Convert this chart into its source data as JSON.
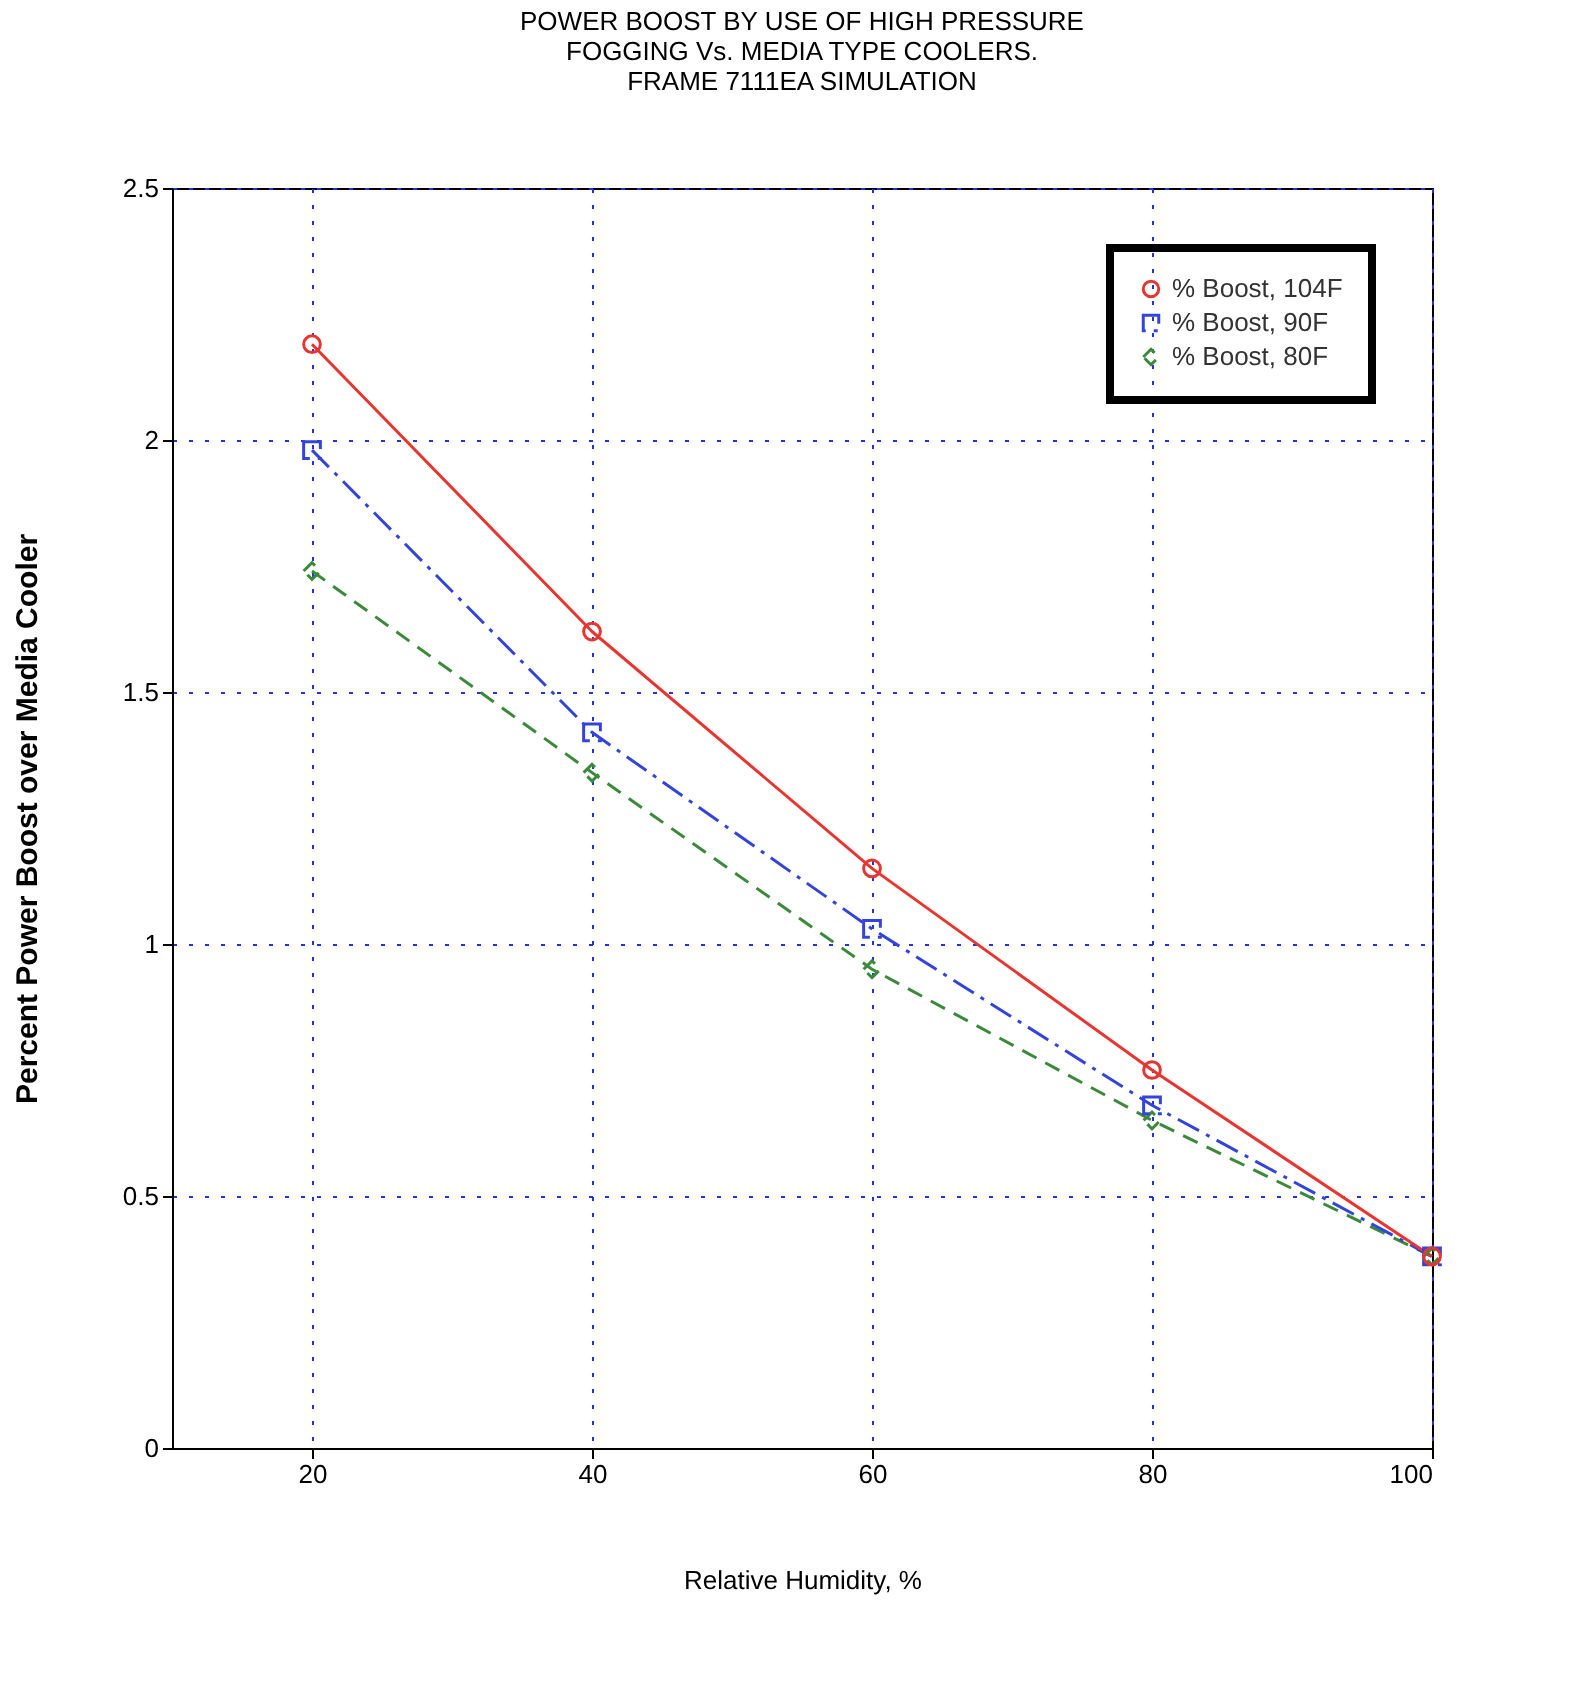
{
  "chart_data": {
    "type": "line",
    "title": [
      "POWER BOOST BY USE OF HIGH PRESSURE",
      "FOGGING Vs. MEDIA TYPE COOLERS.",
      "FRAME 7111EA SIMULATION"
    ],
    "xlabel": "Relative Humidity, %",
    "ylabel": "Percent Power Boost over Media Cooler",
    "x": [
      20,
      40,
      60,
      80,
      100
    ],
    "series": [
      {
        "name": "% Boost, 104F",
        "color": "#e8352f",
        "marker": "circle",
        "line_style": "solid",
        "values": [
          2.19,
          1.62,
          1.15,
          0.75,
          0.38
        ]
      },
      {
        "name": "% Boost, 90F",
        "color": "#3344dd",
        "marker": "square",
        "line_style": "dashdot",
        "values": [
          1.98,
          1.42,
          1.03,
          0.68,
          0.38
        ]
      },
      {
        "name": "% Boost, 80F",
        "color": "#3a8a3a",
        "marker": "diamond",
        "line_style": "dashed",
        "values": [
          1.74,
          1.34,
          0.95,
          0.65,
          0.38
        ]
      }
    ],
    "xlim": [
      10,
      100
    ],
    "xticks": [
      20,
      40,
      60,
      80,
      100
    ],
    "ylim": [
      0,
      2.5
    ],
    "yticks": [
      0,
      0.5,
      1,
      1.5,
      2,
      2.5
    ],
    "grid": true,
    "legend": "top right"
  }
}
